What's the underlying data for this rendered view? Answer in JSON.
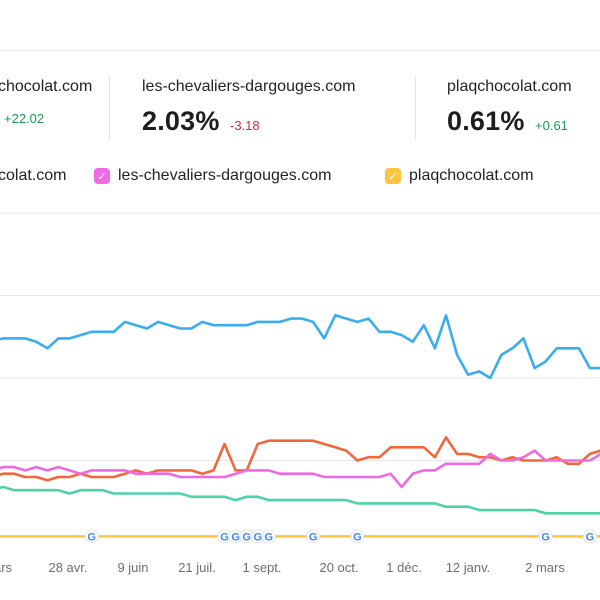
{
  "metrics": [
    {
      "domain": "chocolat.com",
      "value": "",
      "delta": "+22.02"
    },
    {
      "domain": "les-chevaliers-dargouges.com",
      "value": "2.03%",
      "delta": "-3.18"
    },
    {
      "domain": "plaqchocolat.com",
      "value": "0.61%",
      "delta": "+0.61"
    }
  ],
  "legend": [
    {
      "label": "colat.com",
      "color": null
    },
    {
      "label": "les-chevaliers-dargouges.com",
      "color": "#ee6ae4"
    },
    {
      "label": "plaqchocolat.com",
      "color": "#ffc43d"
    }
  ],
  "icons": {
    "check": "checkmark-icon",
    "google": "google-update-icon"
  },
  "chart_data": {
    "type": "line",
    "x_tick_labels": [
      "ars",
      "28 avr.",
      "9 juin",
      "21 juil.",
      "1 sept.",
      "20 oct.",
      "1 déc.",
      "12 janv.",
      "2 mars"
    ],
    "grid": true,
    "legend_position": "top",
    "series": [
      {
        "name": "chocolat.com",
        "color": "#3aadef",
        "values": [
          61,
          62,
          62,
          62,
          61,
          59,
          62,
          62,
          63,
          64,
          64,
          64,
          67,
          66,
          65,
          67,
          66,
          65,
          65,
          67,
          66,
          66,
          66,
          66,
          67,
          67,
          67,
          68,
          68,
          67,
          62,
          69,
          68,
          67,
          68,
          64,
          64,
          63,
          61,
          66,
          59,
          69,
          57,
          51,
          52,
          50,
          57,
          59,
          62,
          53,
          55,
          59,
          59,
          59,
          53,
          53
        ]
      },
      {
        "name": "",
        "color": "#f2683a",
        "values": [
          20,
          21,
          21,
          20,
          20,
          19,
          20,
          20,
          21,
          20,
          20,
          20,
          21,
          22,
          21,
          22,
          22,
          22,
          22,
          21,
          22,
          30,
          22,
          22,
          30,
          31,
          31,
          31,
          31,
          31,
          30,
          29,
          28,
          25,
          26,
          26,
          29,
          29,
          29,
          29,
          26,
          32,
          27,
          27,
          26,
          26,
          25,
          26,
          25,
          25,
          25,
          26,
          24,
          24,
          27,
          28
        ]
      },
      {
        "name": "les-chevaliers-dargouges.com",
        "color": "#ee6ae4",
        "values": [
          22,
          23,
          23,
          22,
          23,
          22,
          23,
          22,
          21,
          22,
          22,
          22,
          22,
          21,
          21,
          21,
          21,
          20,
          20,
          20,
          20,
          20,
          21,
          22,
          22,
          22,
          21,
          21,
          21,
          21,
          20,
          20,
          20,
          20,
          20,
          20,
          21,
          17,
          21,
          22,
          22,
          24,
          24,
          24,
          24,
          27,
          25,
          25,
          26,
          28,
          25,
          25,
          25,
          25,
          25,
          27
        ]
      },
      {
        "name": "",
        "color": "#4fd2a6",
        "values": [
          16,
          17,
          16,
          16,
          16,
          16,
          16,
          15,
          16,
          16,
          16,
          15,
          15,
          15,
          15,
          15,
          15,
          15,
          14,
          14,
          14,
          14,
          13,
          14,
          14,
          13,
          13,
          13,
          13,
          13,
          13,
          13,
          13,
          12,
          12,
          12,
          12,
          12,
          12,
          12,
          12,
          11,
          11,
          11,
          10,
          10,
          10,
          10,
          10,
          10,
          9,
          9,
          9,
          9,
          9,
          9
        ]
      },
      {
        "name": "plaqchocolat.com",
        "color": "#ffc43d",
        "values": [
          2,
          2,
          2,
          2,
          2,
          2,
          2,
          2,
          2,
          2,
          2,
          2,
          2,
          2,
          2,
          2,
          2,
          2,
          2,
          2,
          2,
          2,
          2,
          2,
          2,
          2,
          2,
          2,
          2,
          2,
          2,
          2,
          2,
          2,
          2,
          2,
          2,
          2,
          2,
          2,
          2,
          2,
          2,
          2,
          2,
          2,
          2,
          2,
          2,
          2,
          2,
          2,
          2,
          2,
          2,
          2
        ]
      }
    ],
    "google_update_markers": [
      9,
      21,
      22,
      23,
      24,
      25,
      29,
      33,
      50,
      54
    ],
    "ylim": [
      0,
      100
    ]
  }
}
